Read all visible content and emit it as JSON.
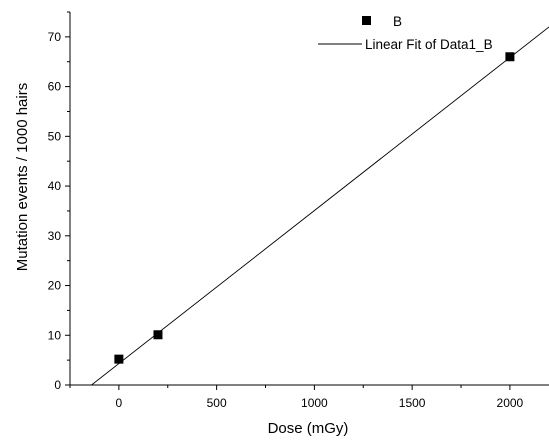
{
  "chart_data": {
    "type": "scatter",
    "xlabel": "Dose (mGy)",
    "ylabel": "Mutation events / 1000 hairs",
    "xlim": [
      -250,
      2200
    ],
    "ylim": [
      0,
      75
    ],
    "x_ticks": [
      0,
      500,
      1000,
      1500,
      2000
    ],
    "y_ticks": [
      0,
      10,
      20,
      30,
      40,
      50,
      60,
      70
    ],
    "x_tick_labels": [
      "0",
      "500",
      "1000",
      "1500",
      "2000"
    ],
    "y_tick_labels": [
      "0",
      "10",
      "20",
      "30",
      "40",
      "50",
      "60",
      "70"
    ],
    "series": [
      {
        "name": "B",
        "kind": "scatter",
        "marker": "square",
        "color": "#000000",
        "x": [
          0,
          200,
          2000
        ],
        "y": [
          5.2,
          10.1,
          66.0
        ]
      },
      {
        "name": "Linear Fit of Data1_B",
        "kind": "line",
        "color": "#000000",
        "x": [
          -140,
          2200
        ],
        "y": [
          0,
          72.0
        ]
      }
    ],
    "legend": {
      "position": "top-right",
      "entries": [
        "B",
        "Linear Fit of Data1_B"
      ]
    },
    "grid": false
  }
}
